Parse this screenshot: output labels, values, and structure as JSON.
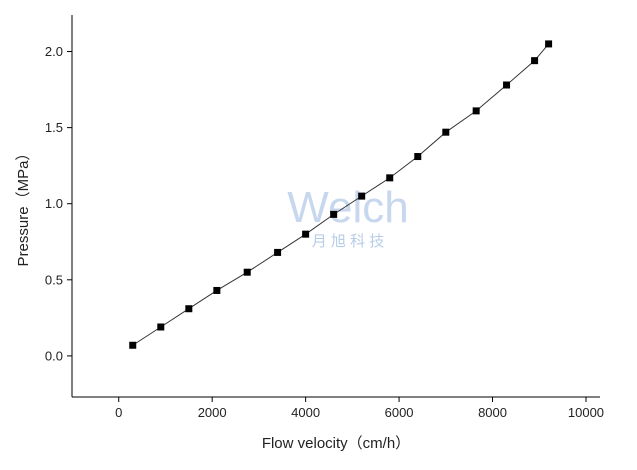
{
  "chart_data": {
    "type": "scatter",
    "x_label": "Flow velocity（cm/h）",
    "y_label": "Pressure（MPa）",
    "annotations": [
      "Welch",
      "月 旭 科 技"
    ],
    "series": [
      {
        "color": "#000000",
        "x": [
          300,
          900,
          1500,
          2100,
          2750,
          3400,
          4000,
          4600,
          5200,
          5800,
          6400,
          7000,
          7650,
          8300,
          8900,
          9200
        ],
        "values": [
          0.07,
          0.19,
          0.31,
          0.43,
          0.55,
          0.68,
          0.8,
          0.93,
          1.05,
          1.17,
          1.31,
          1.47,
          1.61,
          1.78,
          1.94,
          2.05
        ]
      }
    ],
    "xlim": [
      -1000,
      10300
    ],
    "ylim": [
      -0.27,
      2.24
    ],
    "xticks": [
      0,
      2000,
      4000,
      6000,
      8000,
      10000
    ],
    "yticks": [
      {
        "value": 0,
        "label": "0.0"
      },
      0.5,
      {
        "value": 1,
        "label": "1.0"
      },
      1.5,
      {
        "value": 2,
        "label": "2.0"
      }
    ],
    "grid": false
  }
}
